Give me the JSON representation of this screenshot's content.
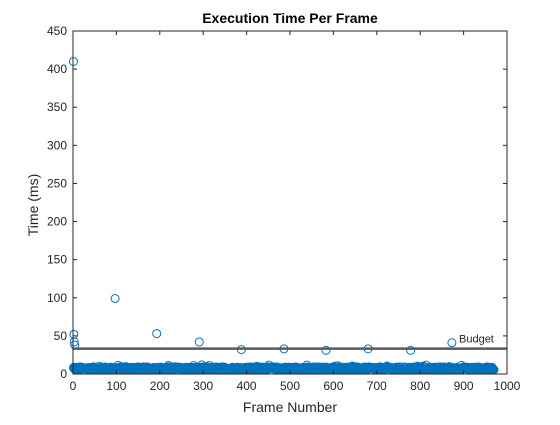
{
  "chart_data": {
    "type": "scatter",
    "title": "Execution Time Per Frame",
    "xlabel": "Frame Number",
    "ylabel": "Time (ms)",
    "xlim": [
      0,
      1000
    ],
    "ylim": [
      0,
      450
    ],
    "xticks": [
      0,
      100,
      200,
      300,
      400,
      500,
      600,
      700,
      800,
      900,
      1000
    ],
    "yticks": [
      0,
      50,
      100,
      150,
      200,
      250,
      300,
      350,
      400,
      450
    ],
    "grid": false,
    "box": true,
    "marker": "open-circle",
    "colors": {
      "marker": "#0072BD",
      "budget_line": "#595959",
      "axes": "#262626"
    },
    "series": [
      {
        "x": [
          1,
          2,
          3,
          4,
          97,
          193,
          291,
          388,
          486,
          583,
          680,
          778,
          873
        ],
        "y": [
          410,
          52,
          42,
          38,
          99,
          53,
          42,
          32,
          33,
          31,
          33,
          31,
          41
        ]
      }
    ],
    "dense_band": {
      "x_range": [
        1,
        970
      ],
      "y_range": [
        3,
        12
      ],
      "count": 970
    },
    "annotations": [
      {
        "type": "hline",
        "label": "Budget",
        "y": 33.3,
        "x_range": [
          0,
          1000
        ]
      }
    ]
  }
}
